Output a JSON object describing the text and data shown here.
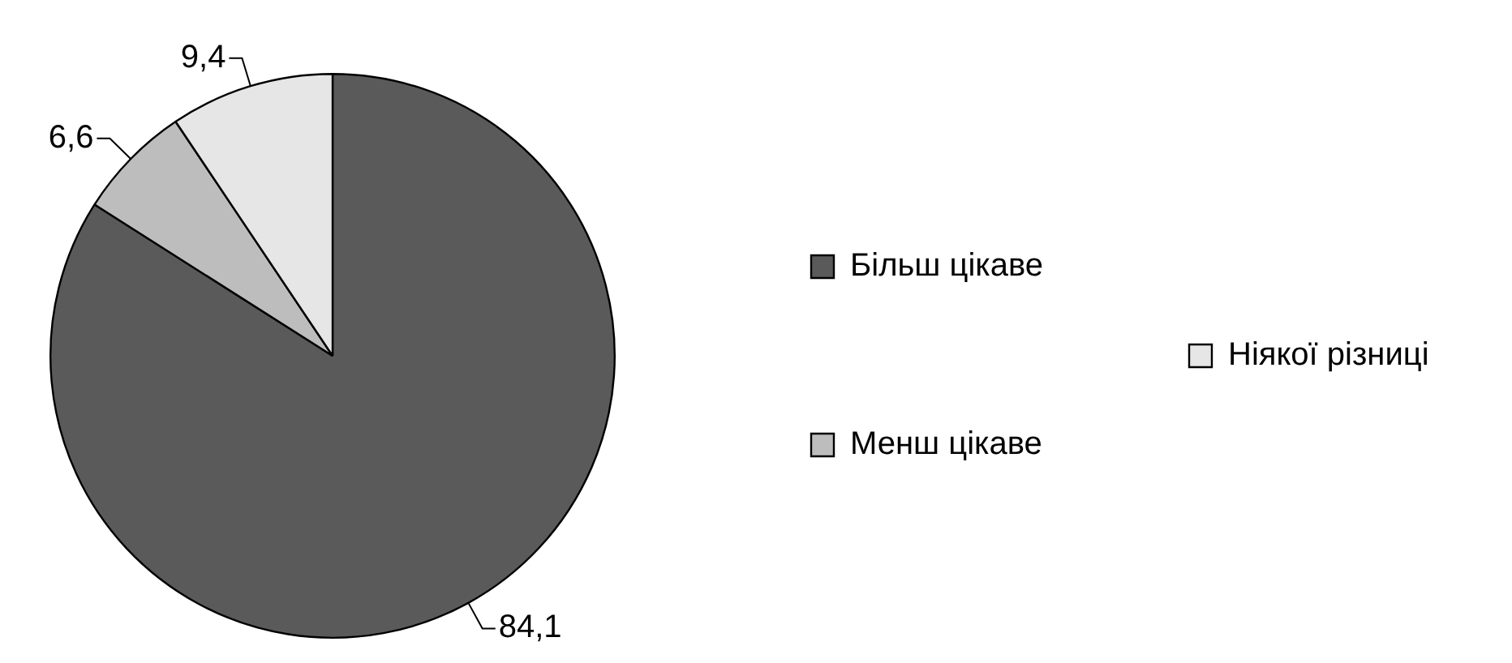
{
  "chart_data": {
    "type": "pie",
    "categories": [
      "Більш цікаве",
      "Менш цікаве",
      "Ніякої різниці"
    ],
    "values": [
      84.1,
      6.6,
      9.4
    ],
    "colors": [
      "#5a5a5a",
      "#bdbdbd",
      "#e6e6e6"
    ],
    "value_labels": [
      "84,1",
      "6,6",
      "9,4"
    ],
    "legend": "right"
  }
}
